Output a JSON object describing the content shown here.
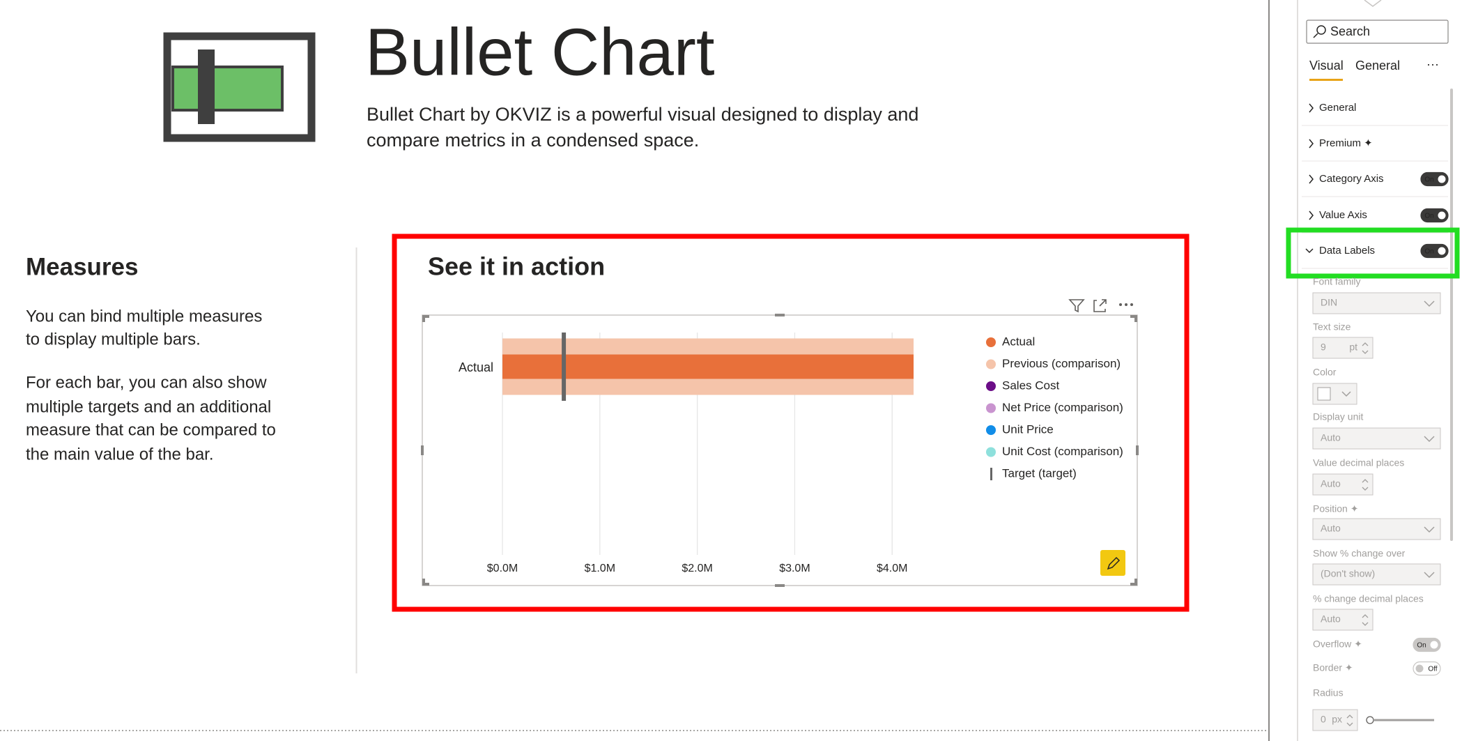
{
  "header": {
    "title": "Bullet Chart",
    "description_lines": [
      "Bullet Chart by OKVIZ is a powerful visual designed to display and",
      "compare metrics in a condensed space."
    ]
  },
  "measures": {
    "title": "Measures",
    "paragraphs": [
      [
        "You can bind multiple measures",
        "to display multiple bars."
      ],
      [
        "For each bar, you can also show",
        "multiple targets and an additional",
        "measure that can be compared to",
        "the main value of the bar."
      ]
    ]
  },
  "demo": {
    "title": "See it in action"
  },
  "chart_data": {
    "type": "bullet",
    "categories": [
      "Actual"
    ],
    "series": [
      {
        "name": "Actual",
        "color": "#e8703a",
        "style": "bar",
        "values": [
          4220000
        ]
      },
      {
        "name": "Previous (comparison)",
        "color": "#f5c4aa",
        "style": "band",
        "values": [
          4220000
        ]
      },
      {
        "name": "Sales Cost",
        "color": "#6b0d87",
        "style": "bar",
        "values": [
          null
        ]
      },
      {
        "name": "Net Price (comparison)",
        "color": "#c994cf",
        "style": "band",
        "values": [
          null
        ]
      },
      {
        "name": "Unit Price",
        "color": "#118de8",
        "style": "bar",
        "values": [
          null
        ]
      },
      {
        "name": "Unit Cost (comparison)",
        "color": "#8ee0dc",
        "style": "band",
        "values": [
          null
        ]
      },
      {
        "name": "Target (target)",
        "color": "#666666",
        "style": "target",
        "values": [
          630000
        ]
      }
    ],
    "xlim": [
      0,
      4220000
    ],
    "xticks": [
      {
        "value": 0,
        "label": "$0.0M"
      },
      {
        "value": 1000000,
        "label": "$1.0M"
      },
      {
        "value": 2000000,
        "label": "$2.0M"
      },
      {
        "value": 3000000,
        "label": "$3.0M"
      },
      {
        "value": 4000000,
        "label": "$4.0M"
      }
    ],
    "grid": true,
    "legend": "right"
  },
  "format_pane": {
    "search_placeholder": "Search",
    "tabs": [
      "Visual",
      "General"
    ],
    "more": "···",
    "sections": [
      {
        "name": "General"
      },
      {
        "name": "Premium ✦"
      },
      {
        "name": "Category Axis",
        "toggle": "On"
      },
      {
        "name": "Value Axis",
        "toggle": "On"
      },
      {
        "name": "Data Labels",
        "toggle": "On"
      }
    ],
    "data_labels_fields": [
      {
        "label": "Font family",
        "value": "DIN"
      },
      {
        "label": "Text size",
        "value": "9",
        "unit": "pt"
      },
      {
        "label": "Color"
      },
      {
        "label": "Display unit",
        "value": "Auto"
      },
      {
        "label": "Value decimal places",
        "value": "Auto"
      },
      {
        "label": "Position ✦",
        "value": "Auto"
      },
      {
        "label": "Show % change over",
        "value": "(Don't show)"
      },
      {
        "label": "% change decimal places",
        "value": "Auto"
      },
      {
        "label": "Overflow ✦",
        "toggle": "On"
      },
      {
        "label": "Border ✦",
        "toggle": "Off"
      },
      {
        "label": "Radius",
        "value": "0",
        "unit": "px"
      }
    ]
  }
}
